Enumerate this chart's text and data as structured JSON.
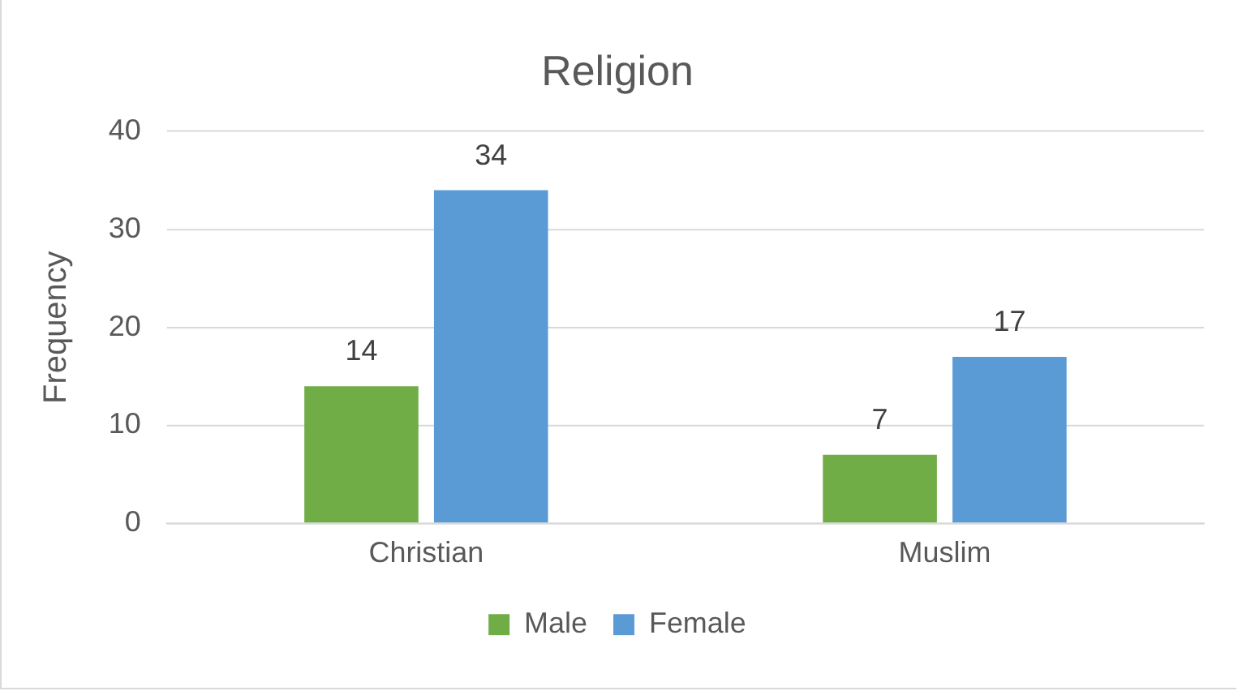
{
  "chart_data": {
    "type": "bar",
    "title": "Religion",
    "ylabel": "Frequency",
    "categories": [
      "Christian",
      "Muslim"
    ],
    "series": [
      {
        "name": "Male",
        "color": "#70ad47",
        "values": [
          14,
          7
        ]
      },
      {
        "name": "Female",
        "color": "#5b9bd5",
        "values": [
          34,
          17
        ]
      }
    ],
    "ylim": [
      0,
      40
    ],
    "yticks": [
      0,
      10,
      20,
      30,
      40
    ],
    "grid": "y",
    "legend": "bottom",
    "data_labels": true
  }
}
